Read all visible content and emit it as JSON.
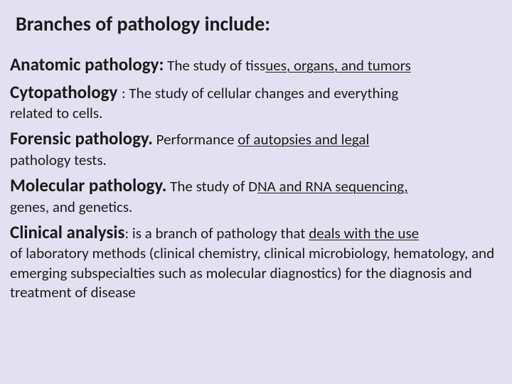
{
  "title": "Branches of pathology include:",
  "entries": [
    {
      "term": " Anatomic pathology:",
      "lead": " The study of tiss",
      "underlined": "ues, organs, and tumors",
      "tail": "",
      "cont": ""
    },
    {
      "term": "Cytopathology ",
      "lead": ": The study of cellular changes and everything",
      "underlined": "",
      "tail": "",
      "cont": "related to cells."
    },
    {
      "term": "Forensic pathology.",
      "lead": " Performance ",
      "underlined": "of autopsies and legal ",
      "tail": "",
      "cont": "pathology tests."
    },
    {
      "term": "Molecular pathology.",
      "lead": " The study of D",
      "underlined": "NA and RNA sequencing, ",
      "tail": "",
      "cont": "genes, and genetics."
    },
    {
      "term": "Clinical analysis",
      "lead": ": is a branch of pathology that ",
      "underlined": "deals with the use ",
      "tail": "",
      "cont": "of laboratory methods (clinical chemistry, clinical microbiology, hematology, and emerging subspecialties such as molecular diagnostics) for the diagnosis and treatment of disease"
    }
  ],
  "style": {
    "background": "#e3e1f1",
    "text_color": "#1a1a1a",
    "title_fontsize": 28,
    "term_fontsize": 25,
    "def_fontsize": 21,
    "font_family": "Calibri"
  }
}
